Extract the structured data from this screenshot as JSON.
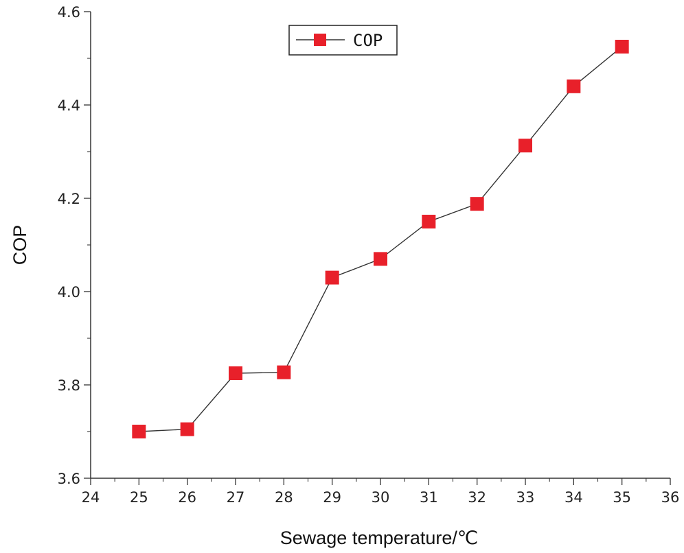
{
  "chart_data": {
    "type": "line",
    "title": "",
    "xlabel": "Sewage temperature/℃",
    "ylabel": "COP",
    "xlim": [
      24,
      36
    ],
    "ylim": [
      3.6,
      4.6
    ],
    "x_ticks": [
      24,
      25,
      26,
      27,
      28,
      29,
      30,
      31,
      32,
      33,
      34,
      35,
      36
    ],
    "y_ticks": [
      3.6,
      3.8,
      4.0,
      4.2,
      4.4,
      4.6
    ],
    "grid": false,
    "legend_position": "top-center",
    "series": [
      {
        "name": "COP",
        "marker": "square",
        "marker_color": "#e8202a",
        "line_color": "#333333",
        "x": [
          25,
          26,
          27,
          28,
          29,
          30,
          31,
          32,
          33,
          34,
          35
        ],
        "y": [
          3.7,
          3.705,
          3.825,
          3.827,
          4.03,
          4.07,
          4.15,
          4.188,
          4.313,
          4.44,
          4.525
        ]
      }
    ]
  }
}
